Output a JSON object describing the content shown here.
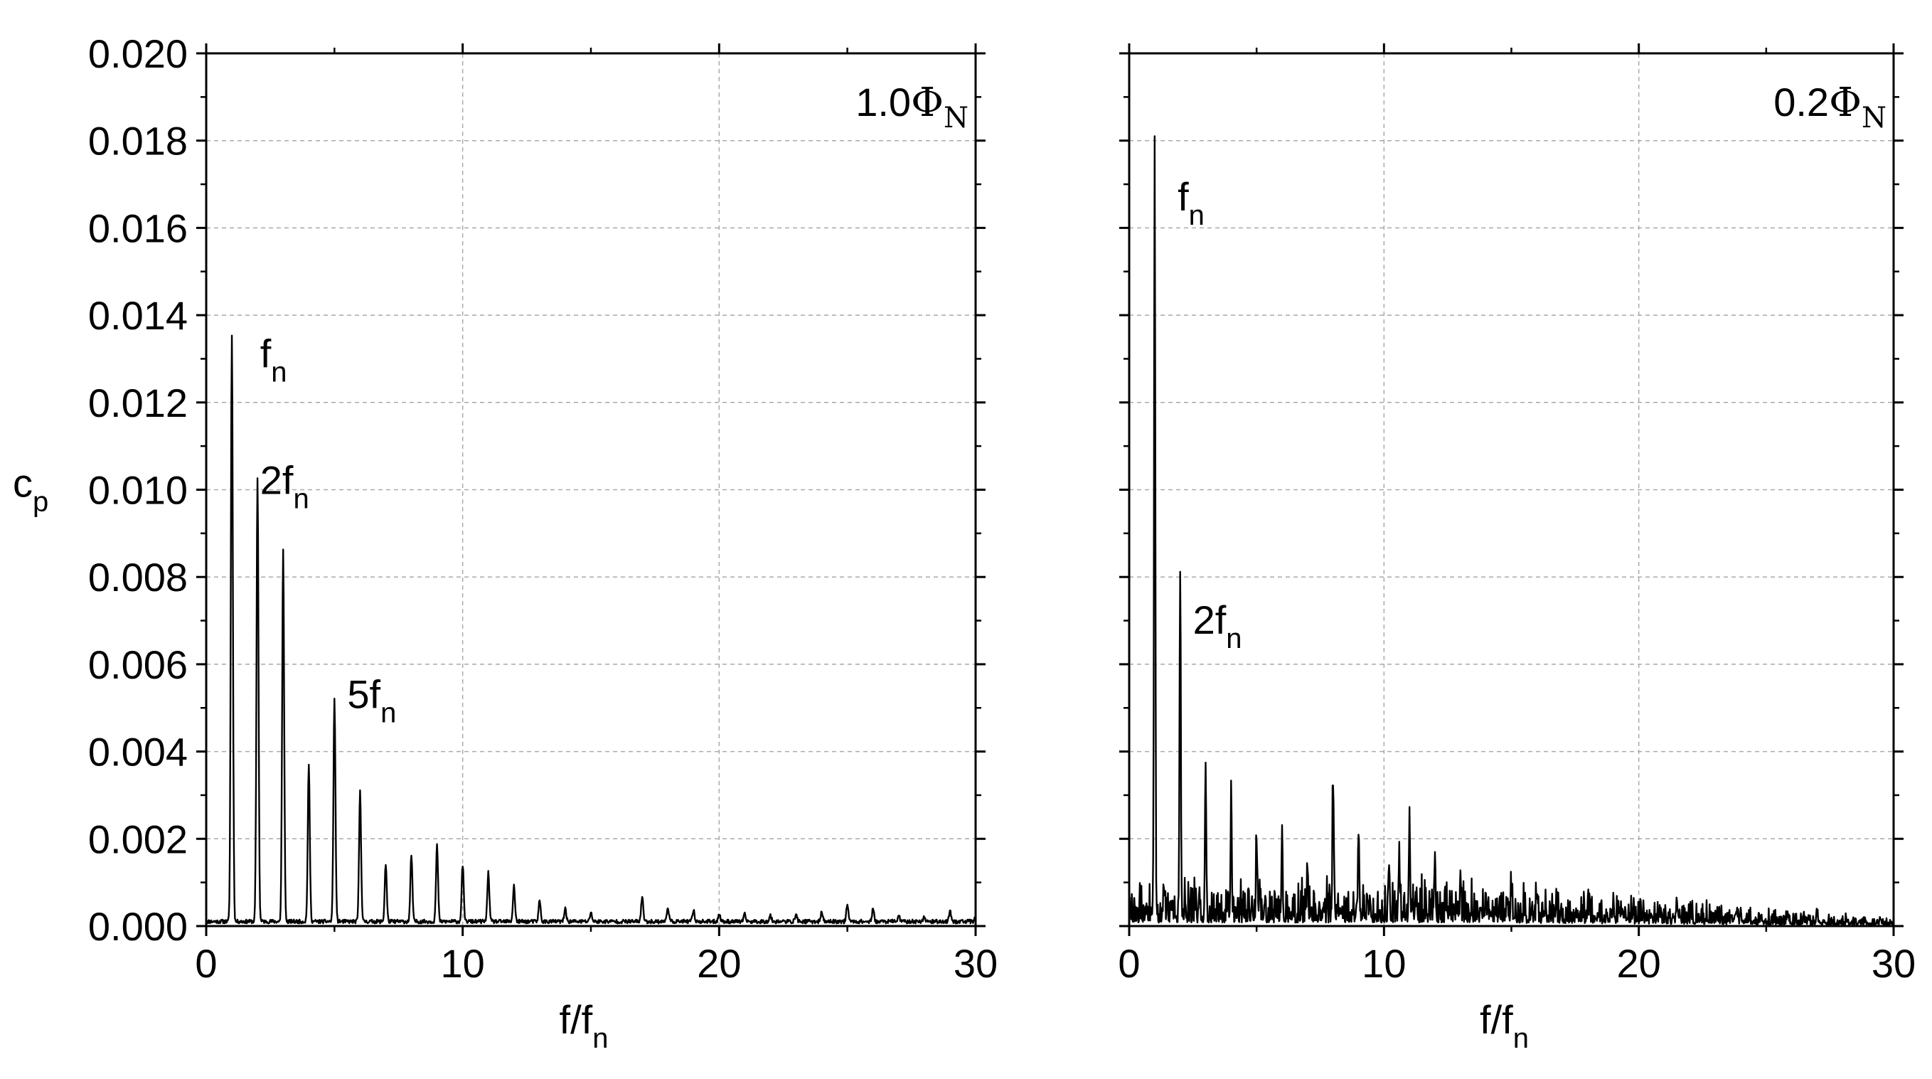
{
  "chart_data": [
    {
      "type": "line",
      "title": "",
      "panel_label": {
        "prefix": "1.0",
        "symbol": "Φ",
        "subscript": "N"
      },
      "xlabel": {
        "base": "f/f",
        "subscript": "n"
      },
      "ylabel": {
        "base": "c",
        "subscript": "p"
      },
      "xlim": [
        0,
        30
      ],
      "ylim": [
        0,
        0.02
      ],
      "x_ticks": [
        0,
        10,
        20,
        30
      ],
      "x_tick_labels": [
        "0",
        "10",
        "20",
        "30"
      ],
      "y_ticks": [
        0,
        0.002,
        0.004,
        0.006,
        0.008,
        0.01,
        0.012,
        0.014,
        0.016,
        0.018,
        0.02
      ],
      "y_tick_labels": [
        "0.000",
        "0.002",
        "0.004",
        "0.006",
        "0.008",
        "0.010",
        "0.012",
        "0.014",
        "0.016",
        "0.018",
        "0.020"
      ],
      "grid": true,
      "annotations": [
        {
          "x": 2.1,
          "y": 0.0128,
          "base": "f",
          "subscript": "n"
        },
        {
          "x": 2.1,
          "y": 0.0099,
          "base": "2f",
          "subscript": "n"
        },
        {
          "x": 5.5,
          "y": 0.005,
          "base": "5f",
          "subscript": "n"
        }
      ],
      "series": [
        {
          "peaks": [
            [
              1,
              0.01345
            ],
            [
              2,
              0.01015
            ],
            [
              3,
              0.0085
            ],
            [
              4,
              0.00355
            ],
            [
              5,
              0.00508
            ],
            [
              6,
              0.003
            ],
            [
              7,
              0.00132
            ],
            [
              8,
              0.00152
            ],
            [
              9,
              0.00175
            ],
            [
              10,
              0.0013
            ],
            [
              11,
              0.00112
            ],
            [
              12,
              0.00082
            ],
            [
              13,
              0.00048
            ],
            [
              14,
              0.0003
            ],
            [
              15,
              0.00022
            ],
            [
              17,
              0.00058
            ],
            [
              18,
              0.00034
            ],
            [
              19,
              0.00026
            ],
            [
              20,
              0.00018
            ],
            [
              21,
              0.00016
            ],
            [
              22,
              0.00014
            ],
            [
              23,
              0.00016
            ],
            [
              24,
              0.00022
            ],
            [
              25,
              0.0004
            ],
            [
              26,
              0.00028
            ],
            [
              27,
              0.00014
            ],
            [
              28,
              0.00012
            ],
            [
              29,
              0.00024
            ],
            [
              30,
              0.00014
            ]
          ],
          "baseline": 0.0001
        }
      ]
    },
    {
      "type": "line",
      "title": "",
      "panel_label": {
        "prefix": "0.2",
        "symbol": "Φ",
        "subscript": "N"
      },
      "xlabel": {
        "base": "f/f",
        "subscript": "n"
      },
      "ylabel": {
        "base": "",
        "subscript": ""
      },
      "xlim": [
        0,
        30
      ],
      "ylim": [
        0,
        0.02
      ],
      "x_ticks": [
        0,
        10,
        20,
        30
      ],
      "x_tick_labels": [
        "0",
        "10",
        "20",
        "30"
      ],
      "y_ticks": [
        0,
        0.002,
        0.004,
        0.006,
        0.008,
        0.01,
        0.012,
        0.014,
        0.016,
        0.018,
        0.02
      ],
      "y_tick_labels": [],
      "grid": true,
      "annotations": [
        {
          "x": 1.9,
          "y": 0.0164,
          "base": "f",
          "subscript": "n"
        },
        {
          "x": 2.5,
          "y": 0.0067,
          "base": "2f",
          "subscript": "n"
        }
      ],
      "series": [
        {
          "peaks": [
            [
              1,
              0.01768
            ],
            [
              2,
              0.008
            ],
            [
              3,
              0.00354
            ],
            [
              4,
              0.00242
            ],
            [
              5,
              0.0018
            ],
            [
              6,
              0.00178
            ],
            [
              7,
              0.0012
            ],
            [
              8,
              0.00308
            ],
            [
              9,
              0.002
            ],
            [
              10.2,
              0.0013
            ],
            [
              10.6,
              0.0014
            ],
            [
              11,
              0.00236
            ],
            [
              12,
              0.0014
            ],
            [
              13,
              0.0007
            ],
            [
              14,
              0.0006
            ],
            [
              15,
              0.0005
            ],
            [
              16,
              0.0005
            ],
            [
              18,
              0.0004
            ],
            [
              19,
              0.00045
            ],
            [
              21.5,
              0.0003
            ],
            [
              24,
              0.00025
            ],
            [
              27,
              0.0002
            ]
          ],
          "baseline": 0.0004
        }
      ]
    }
  ]
}
